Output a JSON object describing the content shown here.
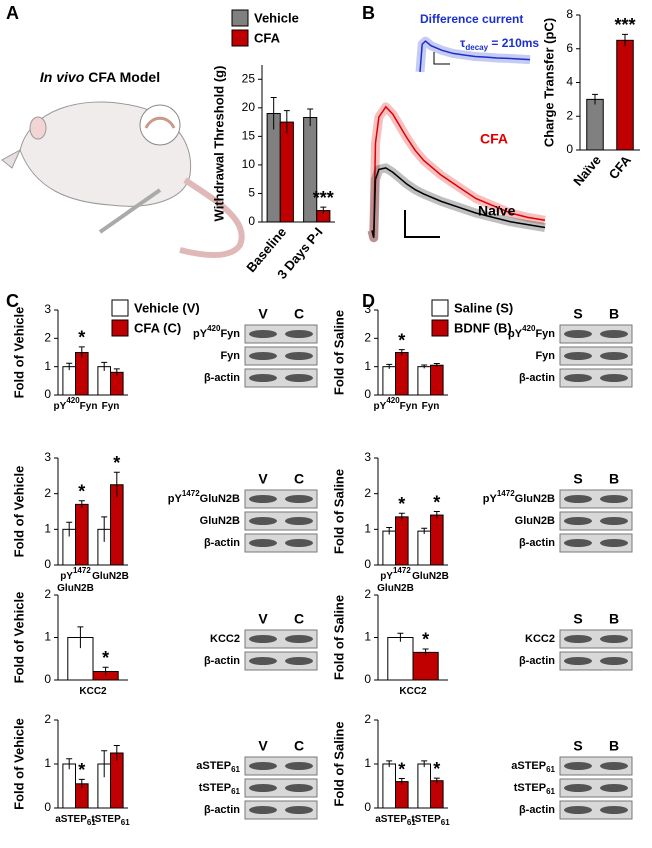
{
  "panel_labels": [
    "A",
    "B",
    "C",
    "D"
  ],
  "illustration": {
    "title_italic": "In vivo",
    "title": "CFA Model"
  },
  "chart_data": [
    {
      "type": "bar",
      "ylabel": "Withdrawal Threshold (g)",
      "categories": [
        "Baseline",
        "3 Days P-I"
      ],
      "series": [
        {
          "name": "Vehicle",
          "color": "#808080",
          "values": [
            19,
            18.3
          ],
          "errors": [
            2.8,
            1.5
          ]
        },
        {
          "name": "CFA",
          "color": "#c00000",
          "values": [
            17.5,
            2
          ],
          "errors": [
            2,
            0.6
          ],
          "significance": [
            null,
            "***"
          ]
        }
      ],
      "ylim": [
        0,
        27.5
      ],
      "yticks": [
        0,
        5,
        10,
        15,
        20,
        25
      ]
    },
    {
      "type": "bar",
      "ylabel": "Charge Transfer (pC)",
      "categories": [
        "Naïve",
        "CFA"
      ],
      "values": [
        3,
        6.5
      ],
      "errors": [
        0.3,
        0.35
      ],
      "colors": [
        "#808080",
        "#c00000"
      ],
      "significance": [
        null,
        "***"
      ],
      "ylim": [
        0,
        8
      ],
      "yticks": [
        0,
        2,
        4,
        6,
        8
      ]
    },
    {
      "type": "line",
      "x": [
        0,
        1,
        2,
        4,
        8,
        12,
        16,
        20,
        25,
        30,
        40,
        50,
        60,
        70,
        80,
        90,
        100
      ],
      "series": [
        {
          "name": "CFA",
          "color": "#e00000",
          "values": [
            0,
            -0.05,
            0.6,
            0.78,
            0.85,
            0.8,
            0.72,
            0.64,
            0.55,
            0.48,
            0.38,
            0.3,
            0.22,
            0.17,
            0.12,
            0.09,
            0.07
          ]
        },
        {
          "name": "Naïve",
          "color": "#000000",
          "values": [
            0,
            -0.05,
            0.35,
            0.42,
            0.43,
            0.4,
            0.36,
            0.32,
            0.28,
            0.25,
            0.2,
            0.16,
            0.12,
            0.09,
            0.06,
            0.04,
            0.02
          ]
        }
      ],
      "xlim": [
        0,
        100
      ],
      "ylim": [
        -0.1,
        1
      ]
    },
    {
      "type": "line",
      "title": "Difference current",
      "annotation": [
        {
          "text": "τ"
        },
        {
          "sub": "decay"
        },
        {
          "text": " = 210ms"
        }
      ],
      "x": [
        0,
        2,
        5,
        10,
        20,
        30,
        40,
        50,
        60,
        70,
        80,
        90,
        100
      ],
      "series": [
        {
          "color": "#1a2fd0",
          "values": [
            0,
            0.9,
            1,
            0.85,
            0.7,
            0.6,
            0.55,
            0.5,
            0.48,
            0.45,
            0.44,
            0.42,
            0.4
          ]
        }
      ],
      "xlim": [
        0,
        100
      ],
      "ylim": [
        -0.1,
        1.1
      ]
    },
    {
      "type": "bar",
      "ylabel": "Fold of Vehicle",
      "categories": [
        [
          [
            {
              "text": "pY"
            },
            {
              "sup": "420"
            },
            {
              "text": "Fyn"
            }
          ]
        ],
        [
          [
            {
              "text": "Fyn"
            }
          ]
        ]
      ],
      "series": [
        {
          "name": "Vehicle (V)",
          "color": "#ffffff",
          "values": [
            1,
            1
          ],
          "errors": [
            0.12,
            0.15
          ]
        },
        {
          "name": "CFA (C)",
          "color": "#c00000",
          "values": [
            1.5,
            0.8
          ],
          "errors": [
            0.2,
            0.12
          ],
          "significance": [
            "*",
            null
          ]
        }
      ],
      "ylim": [
        0,
        3
      ],
      "yticks": [
        0,
        1,
        2,
        3
      ]
    },
    {
      "type": "bar",
      "ylabel": "Fold of Vehicle",
      "categories": [
        [
          [
            {
              "text": "pY"
            },
            {
              "sup": "1472"
            }
          ],
          [
            {
              "text": "GluN2B"
            }
          ]
        ],
        [
          [
            {
              "text": "GluN2B"
            }
          ]
        ]
      ],
      "series": [
        {
          "color": "#ffffff",
          "values": [
            1,
            1
          ],
          "errors": [
            0.2,
            0.35
          ]
        },
        {
          "color": "#c00000",
          "values": [
            1.7,
            2.25
          ],
          "errors": [
            0.1,
            0.35
          ],
          "significance": [
            "*",
            "*"
          ]
        }
      ],
      "ylim": [
        0,
        3
      ],
      "yticks": [
        0,
        1,
        2,
        3
      ]
    },
    {
      "type": "bar",
      "ylabel": "Fold of Vehicle",
      "categories": [
        [
          [
            {
              "text": "KCC2"
            }
          ]
        ]
      ],
      "series": [
        {
          "color": "#ffffff",
          "values": [
            1
          ],
          "errors": [
            0.25
          ]
        },
        {
          "color": "#c00000",
          "values": [
            0.2
          ],
          "errors": [
            0.1
          ],
          "significance": [
            "*"
          ]
        }
      ],
      "ylim": [
        0,
        2
      ],
      "yticks": [
        0,
        1,
        2
      ]
    },
    {
      "type": "bar",
      "ylabel": "Fold of Vehicle",
      "categories": [
        [
          [
            {
              "text": "aSTEP"
            },
            {
              "sub": "61"
            }
          ]
        ],
        [
          [
            {
              "text": "tSTEP"
            },
            {
              "sub": "61"
            }
          ]
        ]
      ],
      "series": [
        {
          "color": "#ffffff",
          "values": [
            1,
            1
          ],
          "errors": [
            0.12,
            0.3
          ]
        },
        {
          "color": "#c00000",
          "values": [
            0.55,
            1.25
          ],
          "errors": [
            0.1,
            0.17
          ],
          "significance": [
            "*",
            null
          ]
        }
      ],
      "ylim": [
        0,
        2
      ],
      "yticks": [
        0,
        1,
        2
      ]
    },
    {
      "type": "bar",
      "ylabel": "Fold of Saline",
      "categories": [
        [
          [
            {
              "text": "pY"
            },
            {
              "sup": "420"
            },
            {
              "text": "Fyn"
            }
          ]
        ],
        [
          [
            {
              "text": "Fyn"
            }
          ]
        ]
      ],
      "series": [
        {
          "name": "Saline (S)",
          "color": "#ffffff",
          "values": [
            1,
            1
          ],
          "errors": [
            0.08,
            0.06
          ]
        },
        {
          "name": "BDNF (B)",
          "color": "#c00000",
          "values": [
            1.5,
            1.05
          ],
          "errors": [
            0.1,
            0.06
          ],
          "significance": [
            "*",
            null
          ]
        }
      ],
      "ylim": [
        0,
        3
      ],
      "yticks": [
        0,
        1,
        2,
        3
      ]
    },
    {
      "type": "bar",
      "ylabel": "Fold of Saline",
      "categories": [
        [
          [
            {
              "text": "pY"
            },
            {
              "sup": "1472"
            }
          ],
          [
            {
              "text": "GluN2B"
            }
          ]
        ],
        [
          [
            {
              "text": "GluN2B"
            }
          ]
        ]
      ],
      "series": [
        {
          "color": "#ffffff",
          "values": [
            0.95,
            0.95
          ],
          "errors": [
            0.1,
            0.08
          ]
        },
        {
          "color": "#c00000",
          "values": [
            1.35,
            1.4
          ],
          "errors": [
            0.1,
            0.1
          ],
          "significance": [
            "*",
            "*"
          ]
        }
      ],
      "ylim": [
        0,
        3
      ],
      "yticks": [
        0,
        1,
        2,
        3
      ]
    },
    {
      "type": "bar",
      "ylabel": "Fold of Saline",
      "categories": [
        [
          [
            {
              "text": "KCC2"
            }
          ]
        ]
      ],
      "series": [
        {
          "color": "#ffffff",
          "values": [
            1
          ],
          "errors": [
            0.1
          ]
        },
        {
          "color": "#c00000",
          "values": [
            0.65
          ],
          "errors": [
            0.08
          ],
          "significance": [
            "*"
          ]
        }
      ],
      "ylim": [
        0,
        2
      ],
      "yticks": [
        0,
        1,
        2
      ]
    },
    {
      "type": "bar",
      "ylabel": "Fold of Saline",
      "categories": [
        [
          [
            {
              "text": "aSTEP"
            },
            {
              "sub": "61"
            }
          ]
        ],
        [
          [
            {
              "text": "tSTEP"
            },
            {
              "sub": "61"
            }
          ]
        ]
      ],
      "series": [
        {
          "color": "#ffffff",
          "values": [
            1,
            1
          ],
          "errors": [
            0.07,
            0.07
          ]
        },
        {
          "color": "#c00000",
          "values": [
            0.6,
            0.62
          ],
          "errors": [
            0.07,
            0.06
          ],
          "significance": [
            "*",
            "*"
          ]
        }
      ],
      "ylim": [
        0,
        2
      ],
      "yticks": [
        0,
        1,
        2
      ]
    }
  ],
  "blots": [
    {
      "columns": [
        "V",
        "C"
      ],
      "rows": [
        [
          {
            "text": "pY"
          },
          {
            "sup": "420"
          },
          {
            "text": "Fyn"
          }
        ],
        [
          {
            "text": "Fyn"
          }
        ],
        [
          {
            "text": "β-actin"
          }
        ]
      ]
    },
    {
      "columns": [
        "V",
        "C"
      ],
      "rows": [
        [
          {
            "text": "pY"
          },
          {
            "sup": "1472"
          },
          {
            "text": "GluN2B"
          }
        ],
        [
          {
            "text": "GluN2B"
          }
        ],
        [
          {
            "text": "β-actin"
          }
        ]
      ]
    },
    {
      "columns": [
        "V",
        "C"
      ],
      "rows": [
        [
          {
            "text": "KCC2"
          }
        ],
        [
          {
            "text": "β-actin"
          }
        ]
      ]
    },
    {
      "columns": [
        "V",
        "C"
      ],
      "rows": [
        [
          {
            "text": "aSTEP"
          },
          {
            "sub": "61"
          }
        ],
        [
          {
            "text": "tSTEP"
          },
          {
            "sub": "61"
          }
        ],
        [
          {
            "text": "β-actin"
          }
        ]
      ]
    },
    {
      "columns": [
        "S",
        "B"
      ],
      "rows": [
        [
          {
            "text": "pY"
          },
          {
            "sup": "420"
          },
          {
            "text": "Fyn"
          }
        ],
        [
          {
            "text": "Fyn"
          }
        ],
        [
          {
            "text": "β-actin"
          }
        ]
      ]
    },
    {
      "columns": [
        "S",
        "B"
      ],
      "rows": [
        [
          {
            "text": "pY"
          },
          {
            "sup": "1472"
          },
          {
            "text": "GluN2B"
          }
        ],
        [
          {
            "text": "GluN2B"
          }
        ],
        [
          {
            "text": "β-actin"
          }
        ]
      ]
    },
    {
      "columns": [
        "S",
        "B"
      ],
      "rows": [
        [
          {
            "text": "KCC2"
          }
        ],
        [
          {
            "text": "β-actin"
          }
        ]
      ]
    },
    {
      "columns": [
        "S",
        "B"
      ],
      "rows": [
        [
          {
            "text": "aSTEP"
          },
          {
            "sub": "61"
          }
        ],
        [
          {
            "text": "tSTEP"
          },
          {
            "sub": "61"
          }
        ],
        [
          {
            "text": "β-actin"
          }
        ]
      ]
    }
  ]
}
